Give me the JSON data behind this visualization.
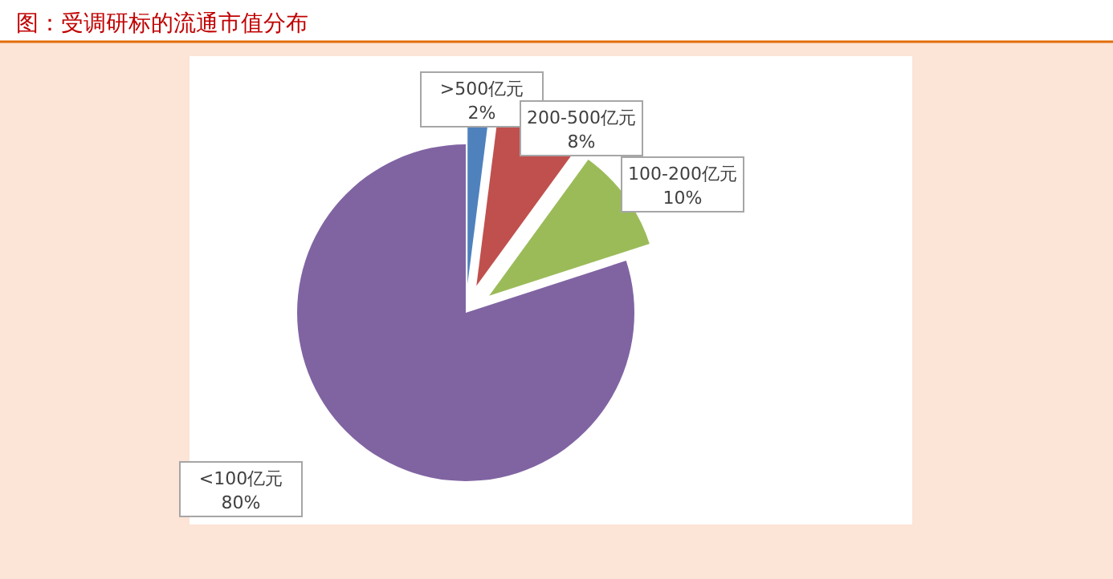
{
  "chart_data": {
    "type": "pie",
    "title": "图：受调研标的流通市值分布",
    "categories": [
      ">500亿元",
      "200-500亿元",
      "100-200亿元",
      "<100亿元"
    ],
    "values": [
      2,
      8,
      10,
      80
    ],
    "colors": [
      "#4f81bd",
      "#c0504d",
      "#9bbb59",
      "#8064a2"
    ],
    "value_labels": [
      "2%",
      "8%",
      "10%",
      "80%"
    ]
  }
}
